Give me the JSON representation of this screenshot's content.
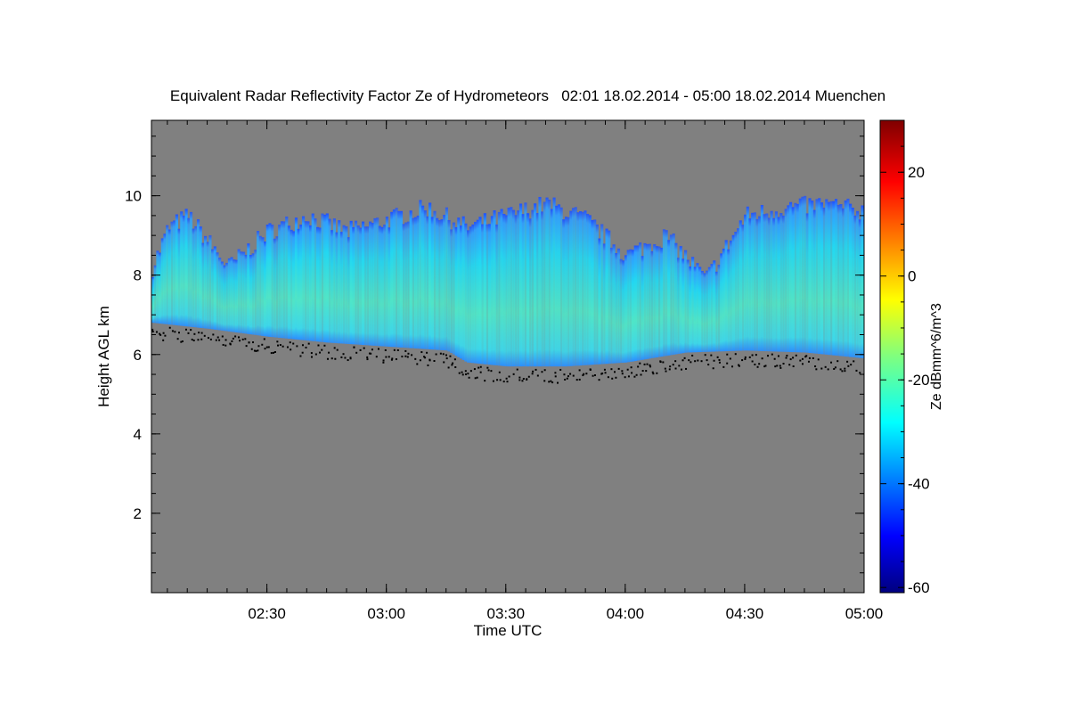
{
  "chart_data": {
    "type": "heatmap",
    "title": "Equivalent Radar Reflectivity Factor Ze of Hydrometeors   02:01 18.02.2014 - 05:00 18.02.2014 Muenchen",
    "xlabel": "Time UTC",
    "ylabel": "Height AGL km",
    "colorbar_label": "Ze dBmm^6/m^3",
    "x_range_minutes": [
      121,
      300
    ],
    "xlim": [
      "02:01",
      "05:00"
    ],
    "x_ticks": [
      {
        "label": "02:30",
        "minute": 150
      },
      {
        "label": "03:00",
        "minute": 180
      },
      {
        "label": "03:30",
        "minute": 210
      },
      {
        "label": "04:00",
        "minute": 240
      },
      {
        "label": "04:30",
        "minute": 270
      },
      {
        "label": "05:00",
        "minute": 300
      }
    ],
    "ylim": [
      0,
      11.9
    ],
    "y_ticks": [
      2,
      4,
      6,
      8,
      10
    ],
    "colorbar_ticks": [
      20,
      0,
      -20,
      -40,
      -60
    ],
    "clim": [
      -61,
      30
    ],
    "colormap": "jet",
    "background_color": "#808080",
    "cloud_base_km": [
      {
        "t": "02:01",
        "h": 6.8
      },
      {
        "t": "02:15",
        "h": 6.65
      },
      {
        "t": "02:30",
        "h": 6.45
      },
      {
        "t": "02:45",
        "h": 6.3
      },
      {
        "t": "03:00",
        "h": 6.2
      },
      {
        "t": "03:15",
        "h": 6.1
      },
      {
        "t": "03:20",
        "h": 5.8
      },
      {
        "t": "03:30",
        "h": 5.7
      },
      {
        "t": "03:45",
        "h": 5.7
      },
      {
        "t": "04:00",
        "h": 5.8
      },
      {
        "t": "04:15",
        "h": 6.05
      },
      {
        "t": "04:30",
        "h": 6.1
      },
      {
        "t": "04:45",
        "h": 6.05
      },
      {
        "t": "05:00",
        "h": 5.9
      }
    ],
    "cloud_top_km": [
      {
        "t": "02:01",
        "h": 8.2
      },
      {
        "t": "02:05",
        "h": 9.2
      },
      {
        "t": "02:10",
        "h": 9.5
      },
      {
        "t": "02:20",
        "h": 8.2
      },
      {
        "t": "02:30",
        "h": 9.1
      },
      {
        "t": "02:40",
        "h": 9.5
      },
      {
        "t": "02:50",
        "h": 9.1
      },
      {
        "t": "03:00",
        "h": 9.4
      },
      {
        "t": "03:10",
        "h": 9.7
      },
      {
        "t": "03:20",
        "h": 9.2
      },
      {
        "t": "03:30",
        "h": 9.5
      },
      {
        "t": "03:40",
        "h": 9.8
      },
      {
        "t": "03:50",
        "h": 9.4
      },
      {
        "t": "04:00",
        "h": 8.5
      },
      {
        "t": "04:10",
        "h": 9.0
      },
      {
        "t": "04:20",
        "h": 7.9
      },
      {
        "t": "04:30",
        "h": 9.5
      },
      {
        "t": "04:40",
        "h": 9.7
      },
      {
        "t": "04:50",
        "h": 9.8
      },
      {
        "t": "05:00",
        "h": 9.6
      }
    ],
    "peak_reflectivity_dBZ": -15
  }
}
